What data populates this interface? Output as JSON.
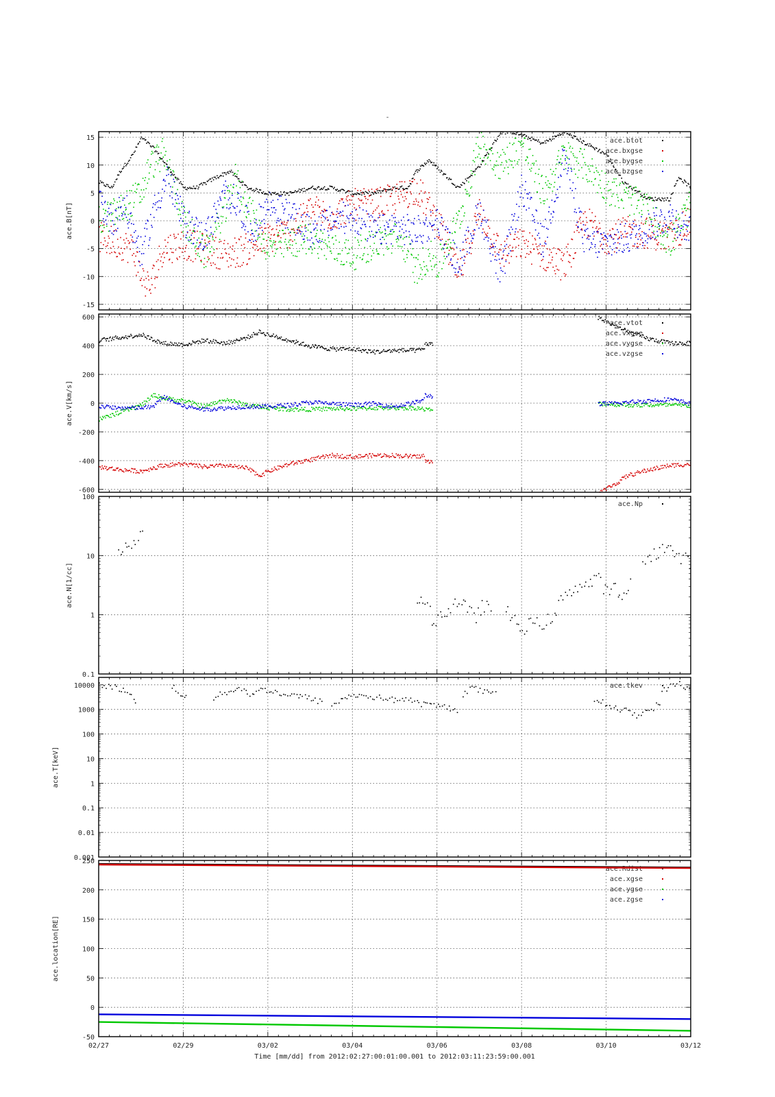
{
  "figure": {
    "title": "-",
    "x_axis_label": "Time [mm/dd]  from 2012:02:27:00:01:00.001  to  2012:03:11:23:59:00.001",
    "x_tick_labels": [
      "02/27",
      "02/29",
      "03/02",
      "03/04",
      "03/06",
      "03/08",
      "03/10",
      "03/12"
    ],
    "colors": {
      "black": "#000000",
      "red": "#d40000",
      "green": "#00c800",
      "blue": "#0000dc",
      "grid": "#555555"
    }
  },
  "chart_data": [
    {
      "type": "scatter",
      "ylabel": "ace.B[nT]",
      "ylim": [
        -16,
        16
      ],
      "yticks": [
        -15,
        -10,
        -5,
        0,
        5,
        10,
        15
      ],
      "xlim_days": [
        0,
        14
      ],
      "legend_position": "top-right",
      "series": [
        {
          "name": "ace.btot",
          "color": "#000000",
          "x": [
            0,
            0.3,
            0.5,
            0.8,
            1.0,
            1.3,
            1.7,
            2.0,
            2.3,
            2.8,
            3.1,
            3.5,
            4.0,
            4.5,
            5.0,
            5.5,
            6.0,
            6.5,
            7.0,
            7.3,
            7.5,
            7.8,
            8.5,
            9.0,
            9.5,
            9.8,
            10.5,
            11.0,
            12.0,
            12.4,
            13.0,
            13.5,
            13.7,
            14.0
          ],
          "y": [
            7,
            6,
            9,
            12,
            15,
            13,
            9,
            6,
            6,
            8,
            9,
            6,
            5,
            5,
            6,
            6,
            5,
            5,
            6,
            6,
            9,
            11,
            6,
            10,
            16,
            16,
            14,
            16,
            12,
            7,
            4,
            4,
            8,
            6
          ]
        },
        {
          "name": "ace.bxgse",
          "color": "#d40000",
          "x": [
            0,
            0.5,
            0.8,
            1.0,
            1.2,
            1.5,
            2.0,
            2.5,
            3.0,
            3.5,
            4.0,
            4.5,
            5.0,
            5.5,
            6.0,
            6.5,
            7.0,
            7.5,
            8.0,
            8.5,
            9.0,
            9.5,
            10.0,
            10.5,
            11.0,
            11.5,
            12.0,
            12.5,
            13.0,
            13.5,
            14.0
          ],
          "y": [
            -3,
            -4,
            -5,
            -10,
            -12,
            -5,
            -4,
            -5,
            -6,
            -5,
            -3,
            -2,
            2,
            1,
            3,
            3,
            4,
            6,
            0,
            -10,
            2,
            -6,
            -4,
            -6,
            -8,
            0,
            -3,
            -2,
            -2,
            -3,
            0
          ]
        },
        {
          "name": "ace.bygse",
          "color": "#00c800",
          "x": [
            0,
            0.5,
            1.0,
            1.2,
            1.5,
            1.8,
            2.0,
            2.5,
            3.0,
            3.2,
            3.5,
            4.0,
            4.5,
            5.0,
            5.5,
            6.0,
            6.5,
            7.0,
            7.3,
            7.5,
            7.8,
            8.0,
            8.5,
            9.0,
            9.5,
            10.0,
            10.5,
            11.0,
            11.5,
            12.0,
            12.5,
            13.0,
            13.5,
            14.0
          ],
          "y": [
            0,
            2,
            5,
            10,
            12,
            6,
            0,
            -6,
            2,
            8,
            3,
            -5,
            -4,
            -3,
            -5,
            -6,
            -4,
            -3,
            -5,
            -9,
            -6,
            -8,
            0,
            14,
            10,
            14,
            5,
            12,
            10,
            6,
            4,
            2,
            -4,
            3
          ]
        },
        {
          "name": "ace.bzgse",
          "color": "#0000dc",
          "x": [
            0,
            0.3,
            0.6,
            1.0,
            1.3,
            1.6,
            2.0,
            2.5,
            3.0,
            3.3,
            3.6,
            4.0,
            4.5,
            5.0,
            5.5,
            6.0,
            6.5,
            7.0,
            7.5,
            8.0,
            8.5,
            9.0,
            9.5,
            10.0,
            10.5,
            11.0,
            11.5,
            12.0,
            12.5,
            13.0,
            13.5,
            14.0
          ],
          "y": [
            4,
            0,
            3,
            -6,
            2,
            8,
            0,
            -3,
            5,
            3,
            -2,
            3,
            1,
            -2,
            0,
            1,
            -2,
            -1,
            -2,
            0,
            -8,
            2,
            -10,
            6,
            -4,
            12,
            -4,
            -4,
            -3,
            -1,
            1,
            -2
          ]
        }
      ]
    },
    {
      "type": "scatter",
      "ylabel": "ace.V[km/s]",
      "ylim": [
        -620,
        620
      ],
      "yticks": [
        -600,
        -400,
        -200,
        0,
        200,
        400,
        600
      ],
      "xlim_days": [
        0,
        14
      ],
      "legend_position": "top-right",
      "series": [
        {
          "name": "ace.vtot",
          "color": "#000000",
          "segments": [
            {
              "x": [
                0,
                0.5,
                1.0,
                1.5,
                2.0,
                2.5,
                3.0,
                3.5,
                3.8,
                4.0,
                4.5,
                5.0,
                5.5,
                6.0,
                6.5,
                7.0,
                7.5,
                7.7
              ],
              "y": [
                440,
                460,
                480,
                420,
                410,
                440,
                420,
                460,
                500,
                480,
                440,
                400,
                380,
                380,
                360,
                370,
                370,
                380
              ]
            },
            {
              "x": [
                7.7,
                7.9
              ],
              "y": [
                420,
                410
              ]
            },
            {
              "x": [
                11.8,
                12.2,
                12.5,
                13.0,
                13.5,
                14.0
              ],
              "y": [
                600,
                540,
                500,
                450,
                420,
                420
              ]
            }
          ]
        },
        {
          "name": "ace.vxgse",
          "color": "#d40000",
          "segments": [
            {
              "x": [
                0,
                0.5,
                1.0,
                1.5,
                2.0,
                2.5,
                3.0,
                3.5,
                3.8,
                4.0,
                4.5,
                5.0,
                5.5,
                6.0,
                6.5,
                7.0,
                7.5,
                7.7
              ],
              "y": [
                -440,
                -460,
                -470,
                -430,
                -420,
                -440,
                -430,
                -450,
                -500,
                -470,
                -420,
                -390,
                -360,
                -370,
                -360,
                -360,
                -370,
                -360
              ]
            },
            {
              "x": [
                7.7,
                7.9
              ],
              "y": [
                -400,
                -410
              ]
            },
            {
              "x": [
                11.8,
                12.2,
                12.5,
                13.0,
                13.5,
                14.0
              ],
              "y": [
                -620,
                -560,
                -500,
                -460,
                -430,
                -420
              ]
            }
          ]
        },
        {
          "name": "ace.vygse",
          "color": "#00c800",
          "segments": [
            {
              "x": [
                0,
                0.5,
                1.0,
                1.3,
                1.5,
                2.0,
                2.5,
                3.0,
                3.5,
                4.0,
                4.5,
                5.0,
                5.5,
                6.0,
                6.5,
                7.0,
                7.5,
                7.7
              ],
              "y": [
                -110,
                -60,
                -10,
                60,
                40,
                20,
                -20,
                30,
                -10,
                -30,
                -40,
                -40,
                -35,
                -35,
                -30,
                -30,
                -30,
                -40
              ]
            },
            {
              "x": [
                7.7,
                7.9
              ],
              "y": [
                -40,
                -45
              ]
            },
            {
              "x": [
                11.8,
                12.5,
                13.0,
                13.5,
                14.0
              ],
              "y": [
                0,
                -10,
                -10,
                -10,
                -15
              ]
            }
          ]
        },
        {
          "name": "ace.vzgse",
          "color": "#0000dc",
          "segments": [
            {
              "x": [
                0,
                0.5,
                1.0,
                1.3,
                1.5,
                2.0,
                2.5,
                3.0,
                3.5,
                4.0,
                4.5,
                5.0,
                5.5,
                6.0,
                6.5,
                7.0,
                7.5,
                7.7
              ],
              "y": [
                -20,
                -30,
                -30,
                -20,
                50,
                -20,
                -40,
                -30,
                -20,
                -20,
                -10,
                10,
                0,
                -10,
                0,
                -20,
                10,
                30
              ]
            },
            {
              "x": [
                7.7,
                7.9
              ],
              "y": [
                60,
                50
              ]
            },
            {
              "x": [
                11.8,
                12.2,
                12.5,
                13.0,
                13.5,
                14.0
              ],
              "y": [
                0,
                0,
                10,
                20,
                30,
                0
              ]
            }
          ]
        }
      ]
    },
    {
      "type": "scatter",
      "ylabel": "ace.N[1/cc]",
      "scale": "log",
      "ylim": [
        0.1,
        100
      ],
      "yticks": [
        0.1,
        1,
        10,
        100
      ],
      "ytick_labels": [
        "0.1",
        "1",
        "10",
        "100"
      ],
      "xlim_days": [
        0,
        14
      ],
      "legend_position": "top-right",
      "series": [
        {
          "name": "ace.Np",
          "color": "#000000",
          "segments": [
            {
              "x": [
                0.45,
                0.6,
                0.75,
                0.9,
                1.05
              ],
              "y": [
                11,
                14,
                17,
                19,
                21
              ]
            },
            {
              "x": [
                7.5,
                7.7,
                7.9,
                8.1,
                8.3,
                8.5,
                8.7,
                8.9,
                9.1,
                9.3
              ],
              "y": [
                2.0,
                1.6,
                0.8,
                1.0,
                1.3,
                1.8,
                1.2,
                0.9,
                1.5,
                1.3
              ]
            },
            {
              "x": [
                9.6,
                9.8,
                10.0,
                10.2,
                10.4,
                10.6,
                10.8,
                11.0,
                11.2,
                11.4,
                11.6,
                11.8,
                12.0,
                12.2,
                12.4,
                12.6
              ],
              "y": [
                1.2,
                0.8,
                0.6,
                0.7,
                0.7,
                0.8,
                0.9,
                2.5,
                2.8,
                3.0,
                3.5,
                4.0,
                2.5,
                2.8,
                1.8,
                3.5
              ]
            },
            {
              "x": [
                12.85,
                13.0,
                13.2,
                13.4,
                13.6,
                13.8,
                14.0
              ],
              "y": [
                9,
                10,
                12,
                14,
                11,
                9,
                8
              ]
            }
          ]
        }
      ]
    },
    {
      "type": "scatter",
      "ylabel": "ace.T[keV]",
      "scale": "log",
      "ylim": [
        0.001,
        20000
      ],
      "yticks": [
        0.001,
        0.01,
        0.1,
        1,
        10,
        100,
        1000,
        10000
      ],
      "ytick_labels": [
        "0.001",
        "0.01",
        "0.1",
        "1",
        "10",
        "100",
        "1000",
        "10000"
      ],
      "xlim_days": [
        0,
        14
      ],
      "legend_position": "top-right",
      "series": [
        {
          "name": "ace.tkev",
          "color": "#000000",
          "segments": [
            {
              "x": [
                0,
                0.3,
                0.6,
                0.8,
                0.9
              ],
              "y": [
                10000,
                9000,
                6000,
                3000,
                1200
              ]
            },
            {
              "x": [
                1.7,
                1.9,
                2.1
              ],
              "y": [
                10000,
                5000,
                2500
              ]
            },
            {
              "x": [
                2.7,
                3.0,
                3.3,
                3.6,
                3.9,
                4.2,
                4.5,
                4.8,
                5.1,
                5.3
              ],
              "y": [
                3000,
                5000,
                8000,
                4000,
                7000,
                5000,
                4000,
                3500,
                2500,
                2000
              ]
            },
            {
              "x": [
                5.5,
                5.8,
                6.1,
                6.4,
                6.7,
                7.0,
                7.3
              ],
              "y": [
                1500,
                3000,
                4000,
                3500,
                3000,
                2500,
                3000
              ]
            },
            {
              "x": [
                7.3,
                7.6,
                7.9,
                8.2,
                8.5
              ],
              "y": [
                2500,
                1800,
                1500,
                1300,
                1000
              ]
            },
            {
              "x": [
                8.6,
                8.8,
                9.0,
                9.2,
                9.4
              ],
              "y": [
                4000,
                8000,
                6000,
                5000,
                7000
              ]
            },
            {
              "x": [
                11.7,
                11.9,
                12.1,
                12.3,
                12.5,
                12.7,
                12.9,
                13.1,
                13.3
              ],
              "y": [
                2500,
                2000,
                1500,
                1000,
                900,
                600,
                800,
                1200,
                2000
              ]
            },
            {
              "x": [
                13.3,
                13.5,
                13.7,
                13.9,
                14.0
              ],
              "y": [
                5000,
                9000,
                12000,
                8000,
                6000
              ]
            }
          ]
        }
      ]
    },
    {
      "type": "line",
      "ylabel": "ace.location[RE]",
      "ylim": [
        -50,
        250
      ],
      "yticks": [
        -50,
        0,
        50,
        100,
        150,
        200,
        250
      ],
      "xlim_days": [
        0,
        14
      ],
      "legend_position": "top-right",
      "series": [
        {
          "name": "ace.Rdist",
          "color": "#000000",
          "x": [
            0,
            14
          ],
          "y": [
            244,
            238
          ]
        },
        {
          "name": "ace.xgse",
          "color": "#d40000",
          "x": [
            0,
            14
          ],
          "y": [
            243,
            237
          ]
        },
        {
          "name": "ace.ygse",
          "color": "#00c800",
          "x": [
            0,
            14
          ],
          "y": [
            -25,
            -40
          ]
        },
        {
          "name": "ace.zgse",
          "color": "#0000dc",
          "x": [
            0,
            14
          ],
          "y": [
            -12,
            -20
          ]
        }
      ]
    }
  ]
}
